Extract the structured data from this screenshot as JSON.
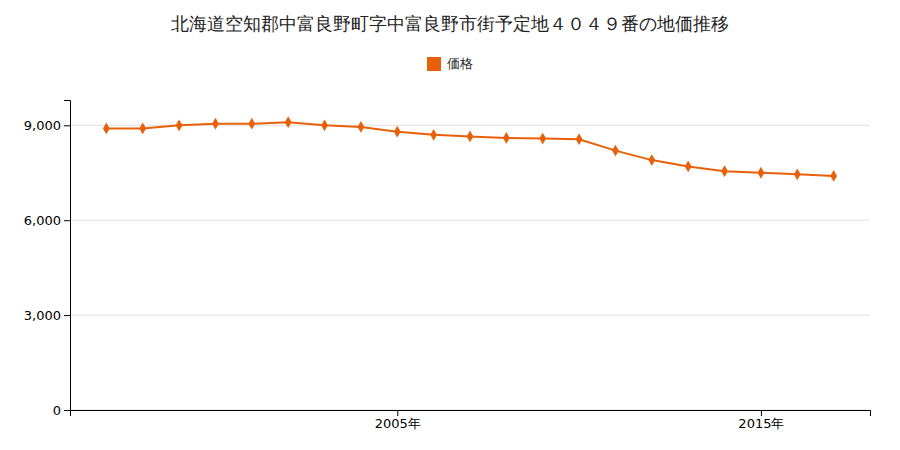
{
  "chart_data": {
    "type": "line",
    "title": "北海道空知郡中富良野町字中富良野市街予定地４０４９番の地価推移",
    "x": [
      1997,
      1998,
      1999,
      2000,
      2001,
      2002,
      2003,
      2004,
      2005,
      2006,
      2007,
      2008,
      2009,
      2010,
      2011,
      2012,
      2013,
      2014,
      2015,
      2016,
      2017
    ],
    "series": [
      {
        "name": "価格",
        "color": "#e8610a",
        "marker": "diamond",
        "values": [
          8900,
          8900,
          9000,
          9050,
          9050,
          9100,
          9000,
          8950,
          8800,
          8700,
          8650,
          8600,
          8580,
          8560,
          8200,
          7900,
          7700,
          7550,
          7500,
          7450,
          7400
        ]
      }
    ],
    "xlim": [
      1996,
      2018
    ],
    "xticks": [
      {
        "value": 2005,
        "label": "2005年"
      },
      {
        "value": 2015,
        "label": "2015年"
      }
    ],
    "ylim": [
      0,
      9800
    ],
    "yticks": [
      0,
      {
        "value": 3000,
        "label": "3,000"
      },
      {
        "value": 6000,
        "label": "6,000"
      },
      {
        "value": 9000,
        "label": "9,000"
      }
    ],
    "grid": "y",
    "legend": "top"
  }
}
